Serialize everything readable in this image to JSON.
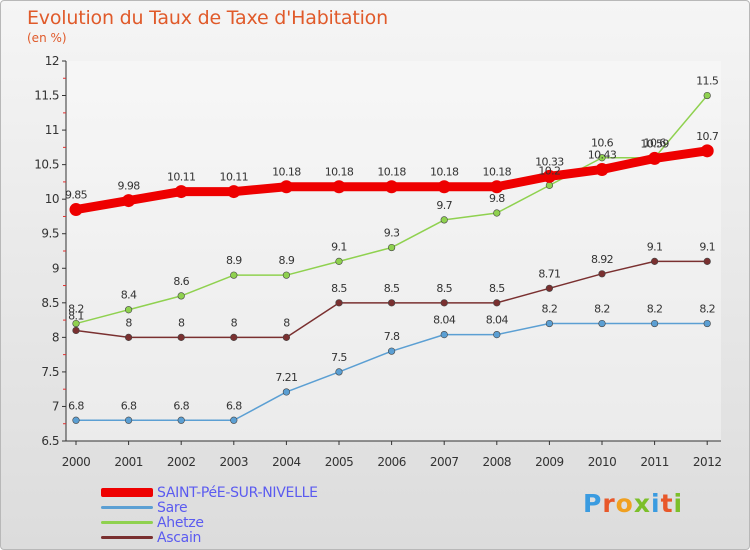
{
  "header": {
    "title": "Evolution du Taux de Taxe d'Habitation",
    "subtitle": "(en %)"
  },
  "logo": {
    "text": "Proxiti",
    "letter_colors": [
      "#3a9be0",
      "#e8582a",
      "#f0a020",
      "#7cbf2a",
      "#3a9be0",
      "#e8582a",
      "#7cbf2a"
    ]
  },
  "chart_data": {
    "type": "line",
    "x": [
      "2000",
      "2001",
      "2002",
      "2003",
      "2004",
      "2005",
      "2006",
      "2007",
      "2008",
      "2009",
      "2010",
      "2011",
      "2012"
    ],
    "yticks": [
      "6.5",
      "7",
      "7.5",
      "8",
      "8.5",
      "9",
      "9.5",
      "10",
      "10.5",
      "11",
      "11.5",
      "12"
    ],
    "ylim": [
      6.5,
      12
    ],
    "grid": false,
    "legend_position": "bottom-left",
    "series": [
      {
        "name": "SAINT-PéE-SUR-NIVELLE",
        "color": "#ee0000",
        "emphasis": "thick",
        "values": [
          9.85,
          9.98,
          10.11,
          10.11,
          10.18,
          10.18,
          10.18,
          10.18,
          10.18,
          10.33,
          10.43,
          10.59,
          10.7
        ],
        "labels": [
          "9.85",
          "9.98",
          "10.11",
          "10.11",
          "10.18",
          "10.18",
          "10.18",
          "10.18",
          "10.18",
          "10.33",
          "10.43",
          "10.59",
          "10.7"
        ]
      },
      {
        "name": "Sare",
        "color": "#5b9fd3",
        "emphasis": "thin",
        "values": [
          6.8,
          6.8,
          6.8,
          6.8,
          7.21,
          7.5,
          7.8,
          8.04,
          8.04,
          8.2,
          8.2,
          8.2,
          8.2
        ],
        "labels": [
          "6.8",
          "6.8",
          "6.8",
          "6.8",
          "7.21",
          "7.5",
          "7.8",
          "8.04",
          "8.04",
          "8.2",
          "8.2",
          "8.2",
          "8.2"
        ]
      },
      {
        "name": "Ahetze",
        "color": "#8fd14f",
        "emphasis": "thin",
        "values": [
          8.2,
          8.4,
          8.6,
          8.9,
          8.9,
          9.1,
          9.3,
          9.7,
          9.8,
          10.2,
          10.6,
          10.6,
          11.5
        ],
        "labels": [
          "8.2",
          "8.4",
          "8.6",
          "8.9",
          "8.9",
          "9.1",
          "9.3",
          "9.7",
          "9.8",
          "10.2",
          "10.6",
          "10.6",
          "11.5"
        ]
      },
      {
        "name": "Ascain",
        "color": "#7a3030",
        "emphasis": "thin",
        "values": [
          8.1,
          8,
          8,
          8,
          8,
          8.5,
          8.5,
          8.5,
          8.5,
          8.71,
          8.92,
          9.1,
          9.1
        ],
        "labels": [
          "8.1",
          "8",
          "8",
          "8",
          "8",
          "8.5",
          "8.5",
          "8.5",
          "8.5",
          "8.71",
          "8.92",
          "9.1",
          "9.1"
        ]
      }
    ]
  }
}
